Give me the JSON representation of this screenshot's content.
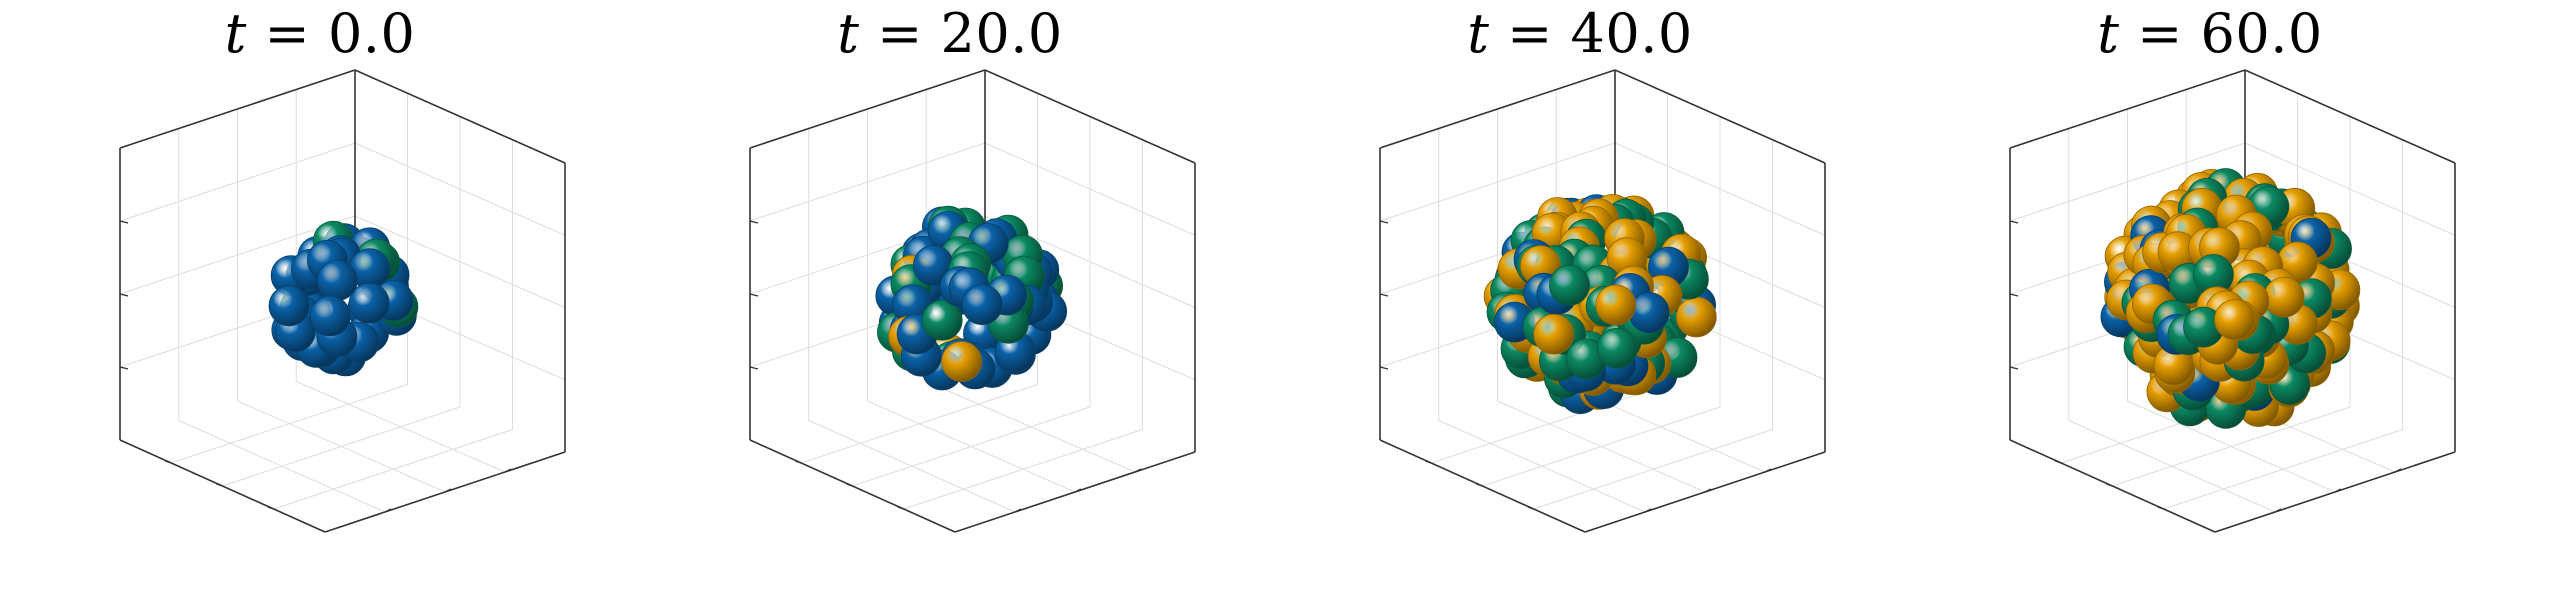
{
  "figure": {
    "panels": [
      {
        "variable": "t",
        "equals": "=",
        "value": "0.0",
        "counts": {
          "blue": 40,
          "green": 6,
          "orange": 0
        },
        "spread": 0.52
      },
      {
        "variable": "t",
        "equals": "=",
        "value": "20.0",
        "counts": {
          "blue": 55,
          "green": 25,
          "orange": 4
        },
        "spread": 0.68
      },
      {
        "variable": "t",
        "equals": "=",
        "value": "40.0",
        "counts": {
          "blue": 28,
          "green": 70,
          "orange": 70
        },
        "spread": 0.84
      },
      {
        "variable": "t",
        "equals": "=",
        "value": "60.0",
        "counts": {
          "blue": 14,
          "green": 65,
          "orange": 150
        },
        "spread": 1.0
      }
    ],
    "colors": {
      "blue": "#0a62a8",
      "green": "#0b8a62",
      "orange": "#e69f00",
      "axis": "#333333",
      "grid": "#dddddd"
    }
  }
}
